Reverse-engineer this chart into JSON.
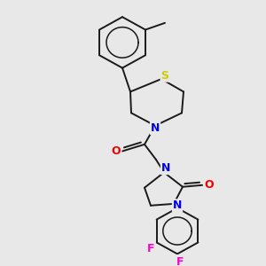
{
  "background_color": "#e8e8e8",
  "bond_color": "#1a1a1a",
  "atom_colors": {
    "S": "#cccc00",
    "N": "#0000ee",
    "O": "#ee0000",
    "F": "#ff00cc",
    "C": "#1a1a1a"
  },
  "figsize": [
    3.0,
    3.0
  ],
  "dpi": 100,
  "lw": 1.4,
  "fontsize": 8.5
}
